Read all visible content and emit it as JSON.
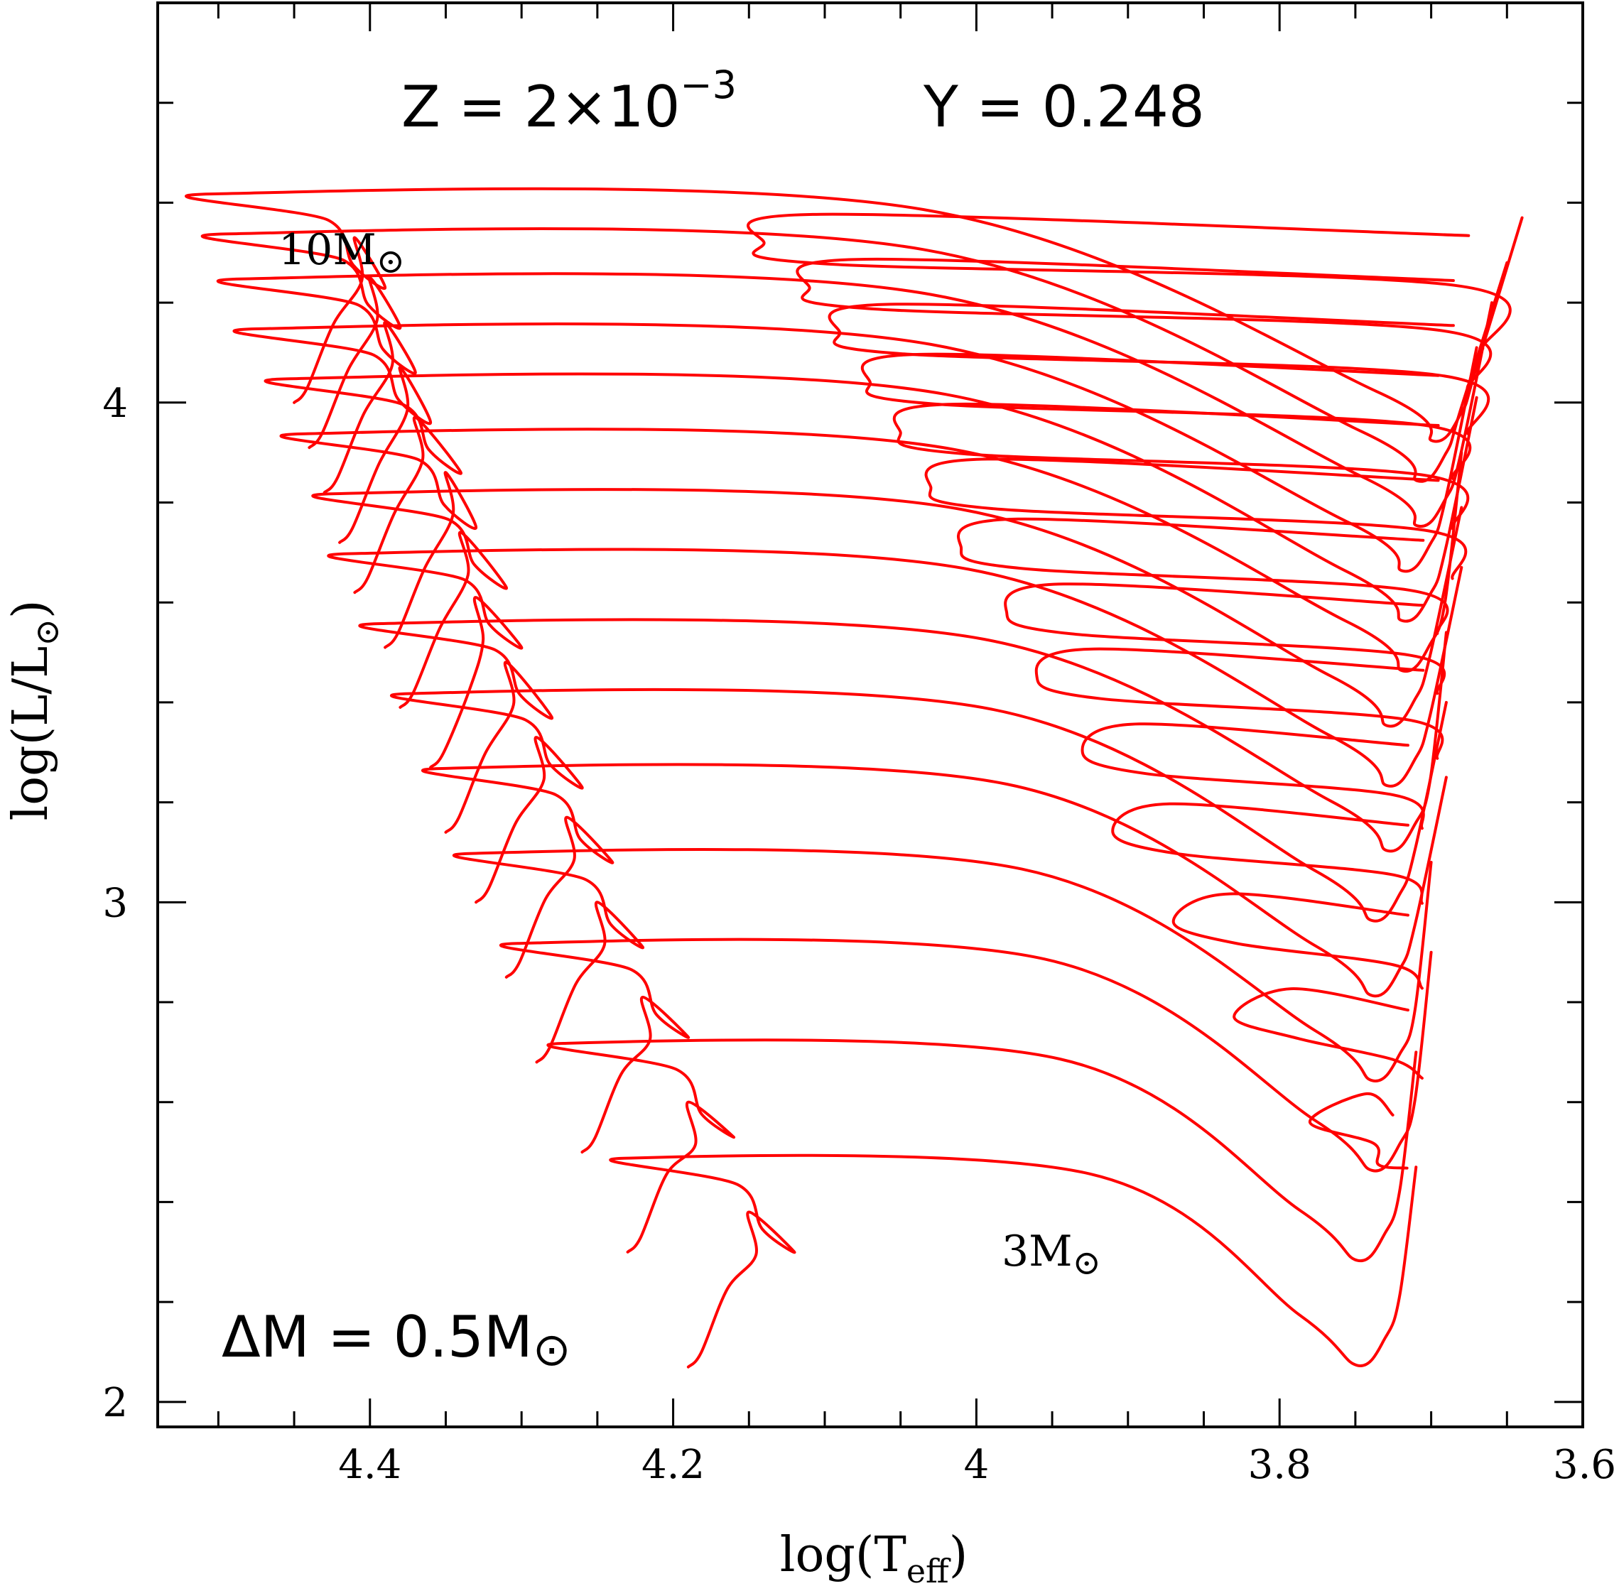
{
  "chart_data": {
    "type": "line",
    "title": "",
    "xlabel_base": "log(T",
    "xlabel_sub": "eff",
    "xlabel_close": ")",
    "ylabel_base": "log(L/L",
    "ylabel_sub": "⊙",
    "ylabel_close": ")",
    "xlim": [
      4.54,
      3.6
    ],
    "ylim": [
      1.95,
      4.8
    ],
    "x_reversed": true,
    "grid": false,
    "x_ticks": [
      {
        "value": 4.4,
        "label": "4.4"
      },
      {
        "value": 4.2,
        "label": "4.2"
      },
      {
        "value": 4.0,
        "label": "4"
      },
      {
        "value": 3.8,
        "label": "3.8"
      },
      {
        "value": 3.6,
        "label": "3.6"
      }
    ],
    "y_ticks": [
      {
        "value": 2,
        "label": "2"
      },
      {
        "value": 3,
        "label": "3"
      },
      {
        "value": 4,
        "label": "4"
      }
    ],
    "annotations": {
      "z_text": "Z  =  2×10",
      "z_exp": "−3",
      "y_text": "Y  =  0.248",
      "dm_text": "ΔM  =  0.5M",
      "dm_sym": "⊙",
      "top_mass_text": "10M",
      "top_mass_sym": "⊙",
      "bottom_mass_text": "3M",
      "bottom_mass_sym": "⊙"
    },
    "series_color": "#ff0000",
    "tracks": [
      {
        "mass": 3.0,
        "zams": [
          4.19,
          2.07
        ],
        "tams": [
          4.15,
          2.38
        ],
        "hook": [
          4.12,
          2.3
        ],
        "rgb_base": [
          3.73,
          2.13
        ],
        "rgb_top": [
          3.71,
          2.47
        ],
        "loop": null
      },
      {
        "mass": 3.5,
        "zams": [
          4.23,
          2.3
        ],
        "tams": [
          4.19,
          2.6
        ],
        "hook": [
          4.16,
          2.53
        ],
        "rgb_base": [
          3.73,
          2.34
        ],
        "rgb_top": [
          3.71,
          2.7
        ],
        "loop": [
          3.78,
          2.56
        ]
      },
      {
        "mass": 4.0,
        "zams": [
          4.26,
          2.5
        ],
        "tams": [
          4.22,
          2.81
        ],
        "hook": [
          4.19,
          2.73
        ],
        "rgb_base": [
          3.72,
          2.52
        ],
        "rgb_top": [
          3.7,
          2.9
        ],
        "loop": [
          3.83,
          2.77
        ]
      },
      {
        "mass": 4.5,
        "zams": [
          4.29,
          2.68
        ],
        "tams": [
          4.25,
          3.0
        ],
        "hook": [
          4.22,
          2.91
        ],
        "rgb_base": [
          3.72,
          2.7
        ],
        "rgb_top": [
          3.7,
          3.08
        ],
        "loop": [
          3.87,
          2.96
        ]
      },
      {
        "mass": 5.0,
        "zams": [
          4.31,
          2.85
        ],
        "tams": [
          4.27,
          3.17
        ],
        "hook": [
          4.24,
          3.08
        ],
        "rgb_base": [
          3.72,
          2.87
        ],
        "rgb_top": [
          3.69,
          3.25
        ],
        "loop": [
          3.91,
          3.14
        ]
      },
      {
        "mass": 5.5,
        "zams": [
          4.33,
          3.0
        ],
        "tams": [
          4.29,
          3.33
        ],
        "hook": [
          4.26,
          3.23
        ],
        "rgb_base": [
          3.72,
          3.02
        ],
        "rgb_top": [
          3.69,
          3.4
        ],
        "loop": [
          3.93,
          3.3
        ]
      },
      {
        "mass": 6.0,
        "zams": [
          4.35,
          3.14
        ],
        "tams": [
          4.31,
          3.48
        ],
        "hook": [
          4.28,
          3.37
        ],
        "rgb_base": [
          3.71,
          3.16
        ],
        "rgb_top": [
          3.69,
          3.54
        ],
        "loop": [
          3.96,
          3.45
        ]
      },
      {
        "mass": 6.5,
        "zams": [
          4.36,
          3.27
        ],
        "tams": [
          4.33,
          3.61
        ],
        "hook": [
          4.3,
          3.51
        ],
        "rgb_base": [
          3.71,
          3.29
        ],
        "rgb_top": [
          3.68,
          3.67
        ],
        "loop": [
          3.98,
          3.58
        ]
      },
      {
        "mass": 7.0,
        "zams": [
          4.38,
          3.39
        ],
        "tams": [
          4.34,
          3.74
        ],
        "hook": [
          4.31,
          3.63
        ],
        "rgb_base": [
          3.71,
          3.41
        ],
        "rgb_top": [
          3.68,
          3.79
        ],
        "loop": [
          4.01,
          3.71
        ]
      },
      {
        "mass": 7.5,
        "zams": [
          4.39,
          3.51
        ],
        "tams": [
          4.35,
          3.86
        ],
        "hook": [
          4.33,
          3.75
        ],
        "rgb_base": [
          3.7,
          3.52
        ],
        "rgb_top": [
          3.68,
          3.9
        ],
        "loop": [
          4.03,
          3.83
        ]
      },
      {
        "mass": 8.0,
        "zams": [
          4.41,
          3.62
        ],
        "tams": [
          4.37,
          3.97
        ],
        "hook": [
          4.34,
          3.86
        ],
        "rgb_base": [
          3.7,
          3.62
        ],
        "rgb_top": [
          3.67,
          4.01
        ],
        "loop": [
          4.05,
          3.94
        ]
      },
      {
        "mass": 8.5,
        "zams": [
          4.42,
          3.72
        ],
        "tams": [
          4.38,
          4.07
        ],
        "hook": [
          4.36,
          3.96
        ],
        "rgb_base": [
          3.7,
          3.72
        ],
        "rgb_top": [
          3.67,
          4.11
        ],
        "loop": [
          4.07,
          4.04
        ]
      },
      {
        "mass": 9.0,
        "zams": [
          4.43,
          3.82
        ],
        "tams": [
          4.39,
          4.16
        ],
        "hook": [
          4.37,
          4.06
        ],
        "rgb_base": [
          3.69,
          3.81
        ],
        "rgb_top": [
          3.66,
          4.2
        ],
        "loop": [
          4.09,
          4.14
        ]
      },
      {
        "mass": 9.5,
        "zams": [
          4.44,
          3.91
        ],
        "tams": [
          4.4,
          4.25
        ],
        "hook": [
          4.38,
          4.15
        ],
        "rgb_base": [
          3.69,
          3.9
        ],
        "rgb_top": [
          3.65,
          4.28
        ],
        "loop": [
          4.11,
          4.23
        ]
      },
      {
        "mass": 10.0,
        "zams": [
          4.45,
          4.0
        ],
        "tams": [
          4.41,
          4.33
        ],
        "hook": [
          4.39,
          4.23
        ],
        "rgb_base": [
          3.68,
          3.98
        ],
        "rgb_top": [
          3.64,
          4.37
        ],
        "loop": [
          4.14,
          4.32
        ]
      }
    ]
  }
}
